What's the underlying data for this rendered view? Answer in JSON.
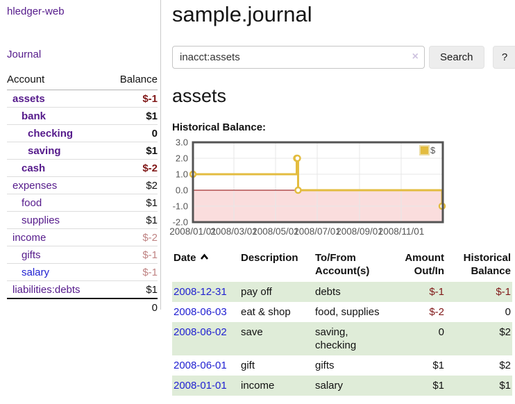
{
  "sidebar": {
    "app_title": "hledger-web",
    "nav_journal": "Journal",
    "accounts": {
      "header_account": "Account",
      "header_balance": "Balance",
      "rows": [
        {
          "name": "assets",
          "balance": "$-1"
        },
        {
          "name": "bank",
          "balance": "$1"
        },
        {
          "name": "checking",
          "balance": "0"
        },
        {
          "name": "saving",
          "balance": "$1"
        },
        {
          "name": "cash",
          "balance": "$-2"
        },
        {
          "name": "expenses",
          "balance": "$2"
        },
        {
          "name": "food",
          "balance": "$1"
        },
        {
          "name": "supplies",
          "balance": "$1"
        },
        {
          "name": "income",
          "balance": "$-2"
        },
        {
          "name": "gifts",
          "balance": "$-1"
        },
        {
          "name": "salary",
          "balance": "$-1"
        },
        {
          "name": "liabilities:debts",
          "balance": "$1"
        }
      ],
      "total": "0"
    }
  },
  "main": {
    "title": "sample.journal",
    "account_heading": "assets",
    "chart_label": "Historical Balance:"
  },
  "search": {
    "value": "inacct:assets",
    "clear_icon": "×",
    "button_label": "Search",
    "help_label": "?"
  },
  "chart_data": {
    "type": "line",
    "title": "Historical Balance:",
    "series": [
      {
        "name": "$",
        "step": true,
        "points": [
          [
            "2008-01-01",
            1
          ],
          [
            "2008-06-01",
            2
          ],
          [
            "2008-06-02",
            2
          ],
          [
            "2008-06-03",
            0
          ],
          [
            "2008-12-31",
            -1
          ]
        ]
      }
    ],
    "xrange": [
      "2008-01-01",
      "2009-01-01"
    ],
    "ylim": [
      -2,
      3
    ],
    "yticks": [
      3,
      2,
      1,
      0,
      -1,
      -2
    ],
    "ytick_labels": [
      "3.0",
      "2.0",
      "1.0",
      "0.0",
      "-1.0",
      "-2.0"
    ],
    "xticks": [
      "2008-01-01",
      "2008-03-01",
      "2008-05-01",
      "2008-07-01",
      "2008-09-01",
      "2008-11-01"
    ],
    "xtick_labels": [
      "2008/01/01",
      "2008/03/01",
      "2008/05/01",
      "2008/07/01",
      "2008/09/01",
      "2008/11/01"
    ],
    "legend_position": "top-right",
    "grid": true,
    "colors": {
      "line": "#e3bc3f",
      "point_fill": "#ffffff",
      "negative_region": "#fadddd",
      "zero_line": "#8b0000",
      "grid": "#e7e7e7",
      "border": "#545454",
      "text": "#545454",
      "legend_border": "#ecdda6"
    }
  },
  "register": {
    "headers": {
      "date": "Date",
      "description": "Description",
      "to_from_line1": "To/From",
      "to_from_line2": "Account(s)",
      "amount_line1": "Amount",
      "amount_line2": "Out/In",
      "balance_line1": "Historical",
      "balance_line2": "Balance"
    },
    "rows": [
      {
        "date": "2008-12-31",
        "description": "pay off",
        "accounts": "debts",
        "amount": "$-1",
        "balance": "$-1"
      },
      {
        "date": "2008-06-03",
        "description": "eat & shop",
        "accounts": "food, supplies",
        "amount": "$-2",
        "balance": "0"
      },
      {
        "date": "2008-06-02",
        "description": "save",
        "accounts": "saving, checking",
        "amount": "0",
        "balance": "$2"
      },
      {
        "date": "2008-06-01",
        "description": "gift",
        "accounts": "gifts",
        "amount": "$1",
        "balance": "$2"
      },
      {
        "date": "2008-01-01",
        "description": "income",
        "accounts": "salary",
        "amount": "$1",
        "balance": "$1"
      }
    ]
  }
}
